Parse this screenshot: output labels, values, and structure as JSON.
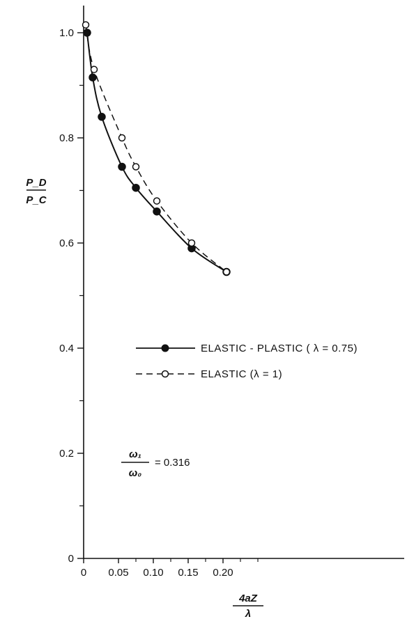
{
  "chart_data": {
    "type": "line",
    "x_ticks": [
      "0",
      "0.05",
      "0.10",
      "0.15",
      "0.20"
    ],
    "y_ticks": [
      "0",
      "0.2",
      "0.4",
      "0.6",
      "0.8",
      "1.0"
    ],
    "xlim": [
      0,
      0.24
    ],
    "ylim": [
      0,
      1.05
    ],
    "ylabel_num": "P_D",
    "ylabel_den": "P_C",
    "xlabel_num": "4aZ",
    "xlabel_den": "λ",
    "grid": false,
    "legend_placement": "center-right",
    "series": [
      {
        "name": "ELASTIC - PLASTIC ( λ = 0.75)",
        "style": "solid",
        "marker": "filled-circle",
        "color": "#111111",
        "x": [
          0.005,
          0.013,
          0.026,
          0.055,
          0.075,
          0.105,
          0.155,
          0.205
        ],
        "y": [
          1.0,
          0.915,
          0.84,
          0.745,
          0.705,
          0.66,
          0.59,
          0.545
        ]
      },
      {
        "name": "ELASTIC  (λ = 1)",
        "style": "dashed",
        "marker": "open-circle",
        "color": "#111111",
        "x": [
          0.003,
          0.015,
          0.055,
          0.075,
          0.105,
          0.155,
          0.205
        ],
        "y": [
          1.015,
          0.93,
          0.8,
          0.745,
          0.68,
          0.6,
          0.545
        ]
      }
    ],
    "annotation": {
      "num": "ω₁",
      "den": "ω₀",
      "value": "= 0.316"
    }
  }
}
